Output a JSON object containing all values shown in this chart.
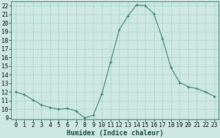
{
  "x": [
    0,
    1,
    2,
    3,
    4,
    5,
    6,
    7,
    8,
    9,
    10,
    11,
    12,
    13,
    14,
    15,
    16,
    17,
    18,
    19,
    20,
    21,
    22,
    23
  ],
  "y": [
    12,
    11.7,
    11.1,
    10.5,
    10.2,
    10.0,
    10.1,
    9.8,
    9.0,
    9.3,
    11.8,
    15.5,
    19.2,
    20.8,
    22.1,
    22.0,
    21.1,
    18.2,
    14.8,
    13.1,
    12.6,
    12.4,
    12.0,
    11.5
  ],
  "line_color": "#2e7d6e",
  "marker": "+",
  "marker_size": 3,
  "marker_linewidth": 0.8,
  "line_width": 0.8,
  "bg_color": "#cce8e0",
  "grid_color": "#aaccC4",
  "xlabel": "Humidex (Indice chaleur)",
  "xlabel_fontsize": 7,
  "xlim": [
    -0.5,
    23.5
  ],
  "ylim": [
    8.8,
    22.5
  ],
  "yticks": [
    9,
    10,
    11,
    12,
    13,
    14,
    15,
    16,
    17,
    18,
    19,
    20,
    21,
    22
  ],
  "xticks": [
    0,
    1,
    2,
    3,
    4,
    5,
    6,
    7,
    8,
    9,
    10,
    11,
    12,
    13,
    14,
    15,
    16,
    17,
    18,
    19,
    20,
    21,
    22,
    23
  ],
  "tick_fontsize": 6,
  "spine_color": "#2e7d6e"
}
